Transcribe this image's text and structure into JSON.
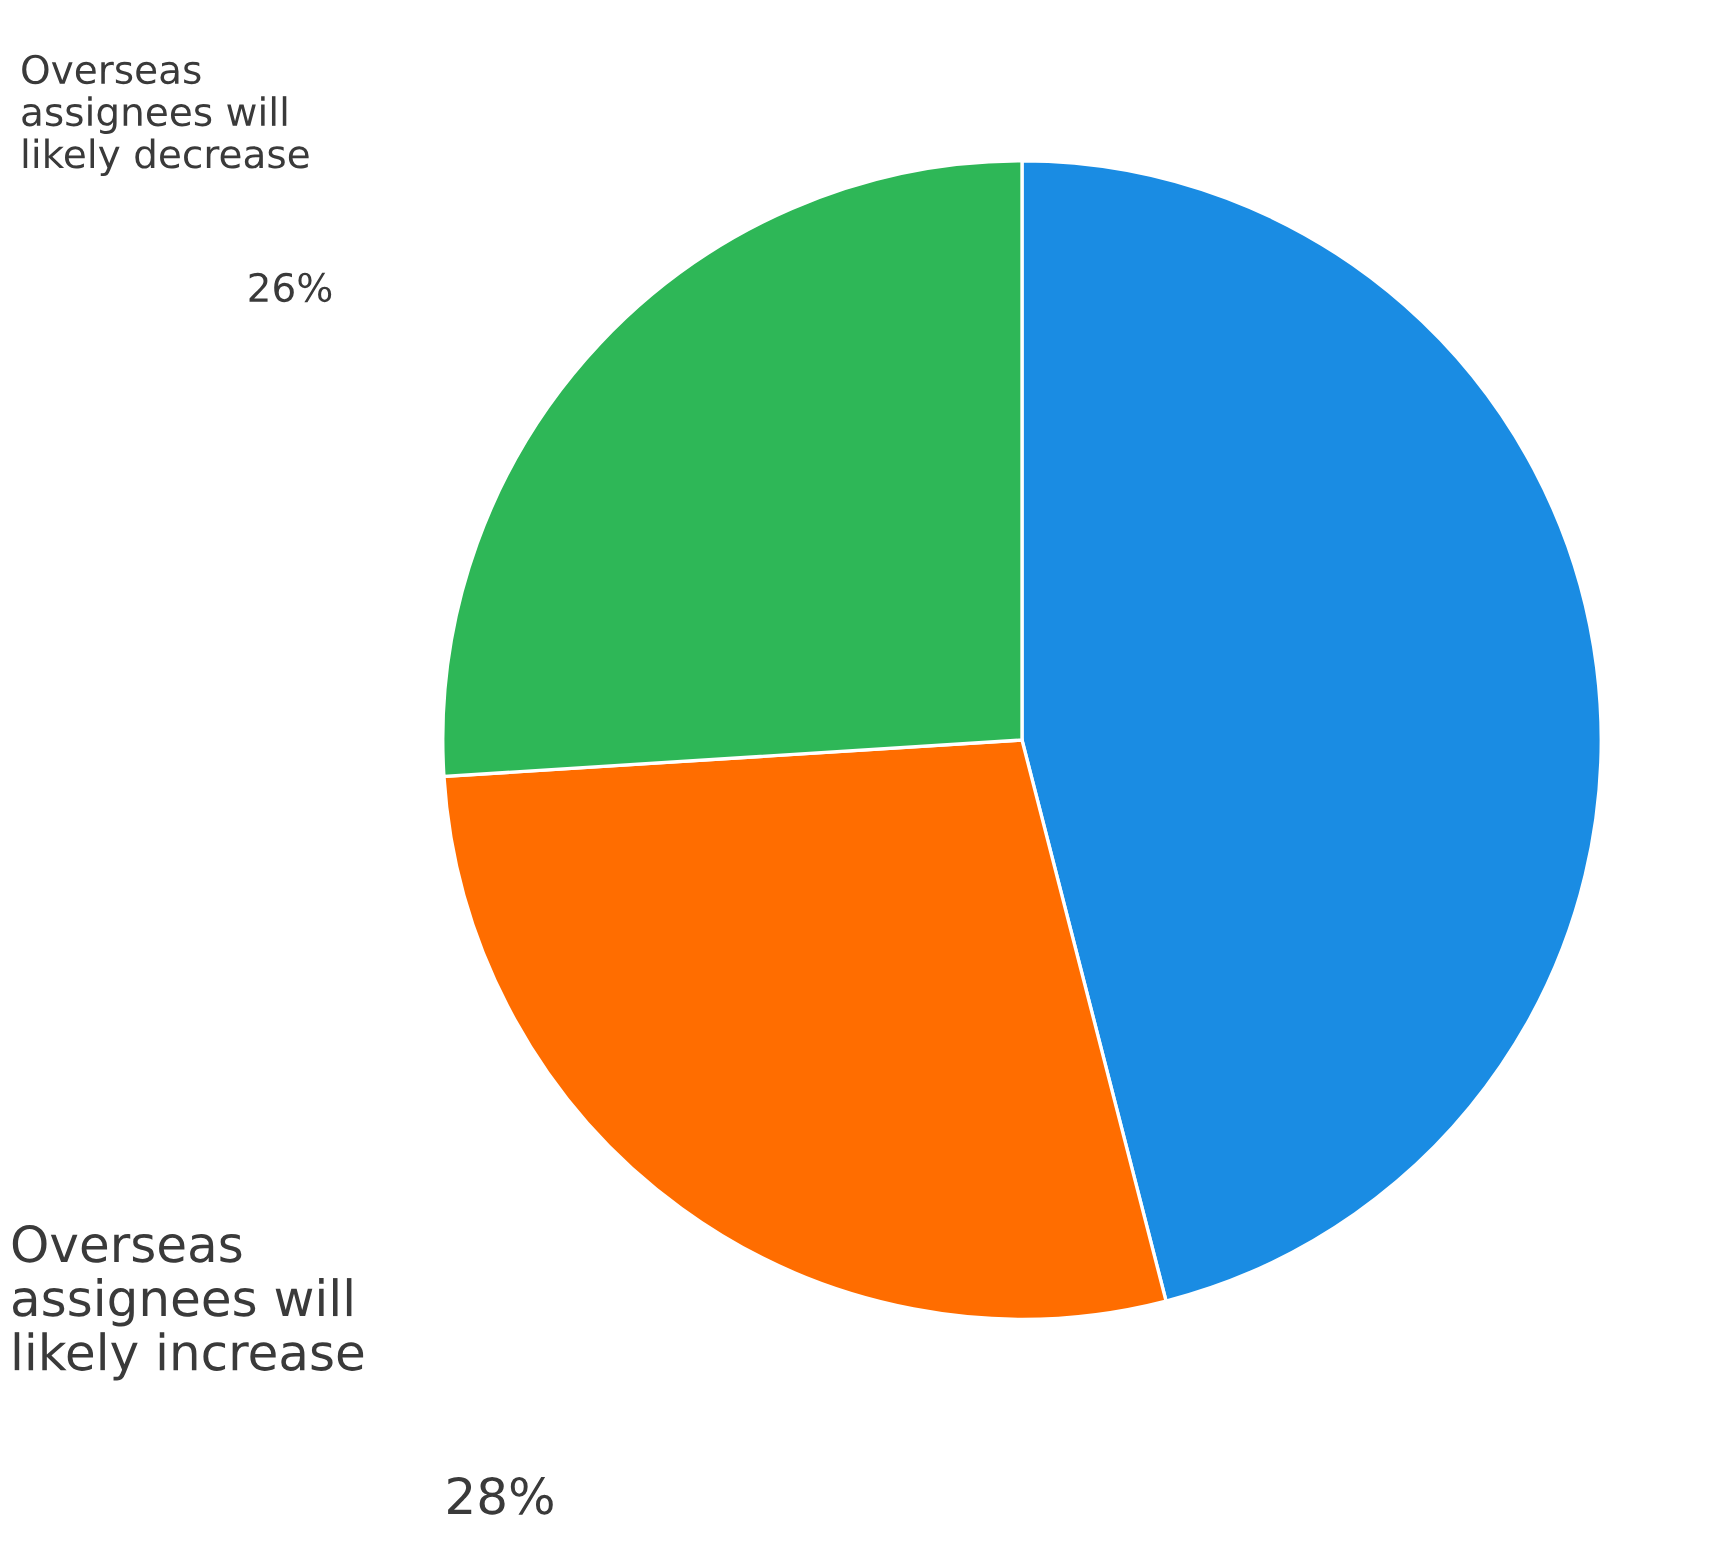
{
  "chart_data": {
    "type": "pie",
    "categories": [
      null,
      "Overseas\nassignees will\nlikely increase",
      "Overseas\nassignees will\nlikely decrease"
    ],
    "values": [
      46,
      28,
      26
    ],
    "colors": [
      "#1a8ce3",
      "#ff6d00",
      "#2eb757"
    ],
    "value_labels": [
      null,
      "28%",
      "26%"
    ]
  }
}
